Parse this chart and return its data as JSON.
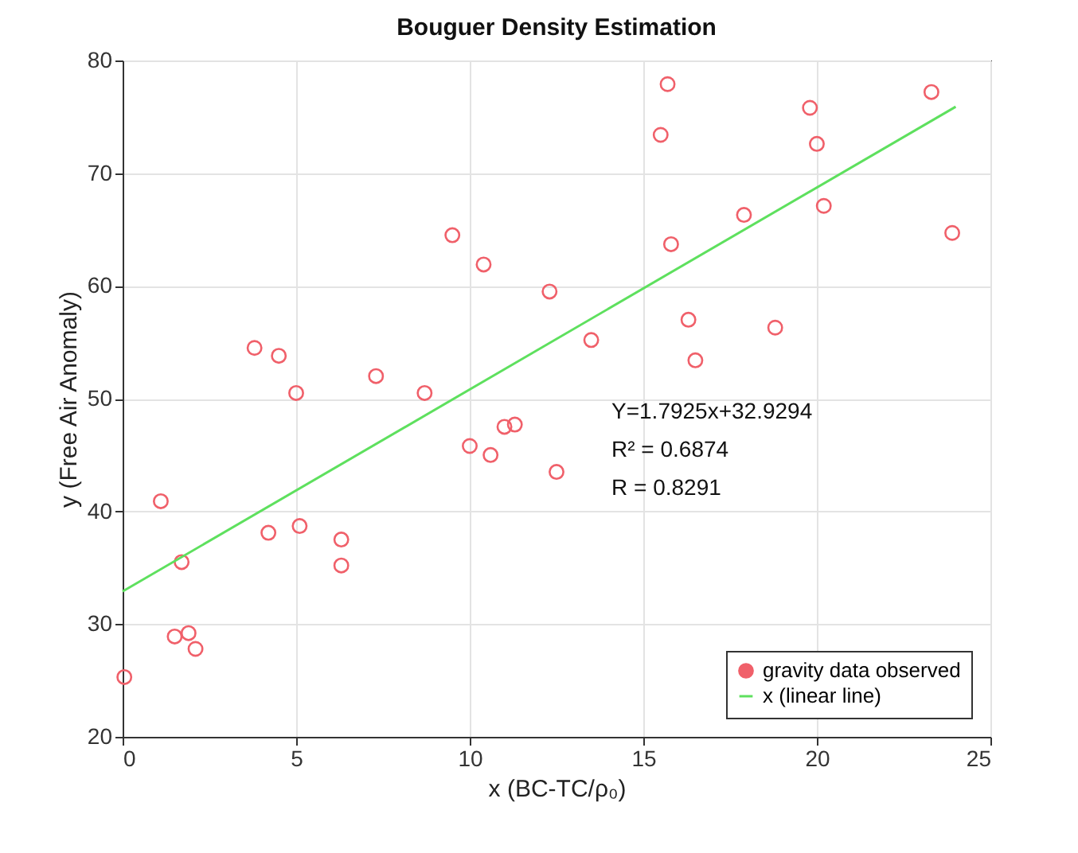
{
  "chart_data": {
    "type": "scatter",
    "title": "Bouguer Density Estimation",
    "xlabel": "x (BC-TC/ρ₀)",
    "ylabel": "y (Free Air Anomaly)",
    "xlim": [
      0,
      25
    ],
    "xticks": [
      0,
      5,
      10,
      15,
      20,
      25
    ],
    "ylim": [
      20,
      80
    ],
    "yticks": [
      20,
      30,
      40,
      50,
      60,
      70,
      80
    ],
    "grid": true,
    "legend": "bottom right",
    "annotations": [
      "Y=1.7925x+32.9294",
      "R² = 0.6874",
      "R = 0.8291"
    ],
    "series": [
      {
        "name": "gravity data observed",
        "marker": "circle",
        "color": "#f0606a",
        "x": [
          0.05,
          1.1,
          1.5,
          1.7,
          1.9,
          2.1,
          3.8,
          4.2,
          4.5,
          5.0,
          5.1,
          6.3,
          6.3,
          7.3,
          8.7,
          9.5,
          10.0,
          10.4,
          10.6,
          11.0,
          11.3,
          12.3,
          12.5,
          13.5,
          15.5,
          15.7,
          15.8,
          16.3,
          16.5,
          17.9,
          18.8,
          19.8,
          20.0,
          20.2,
          23.3,
          23.9
        ],
        "values": [
          25.3,
          40.9,
          28.9,
          35.5,
          29.2,
          27.8,
          54.5,
          38.1,
          53.8,
          50.5,
          38.7,
          37.5,
          35.2,
          52.0,
          50.5,
          64.5,
          45.8,
          61.9,
          45.0,
          47.5,
          47.7,
          59.5,
          43.5,
          55.2,
          73.4,
          77.9,
          63.7,
          57.0,
          53.4,
          66.3,
          56.3,
          75.8,
          72.6,
          67.1,
          77.2,
          64.7
        ]
      },
      {
        "name": "x (linear line)",
        "type": "line",
        "color": "#5ee05e",
        "x": [
          0,
          24
        ],
        "values": [
          32.9,
          75.9
        ]
      }
    ]
  }
}
